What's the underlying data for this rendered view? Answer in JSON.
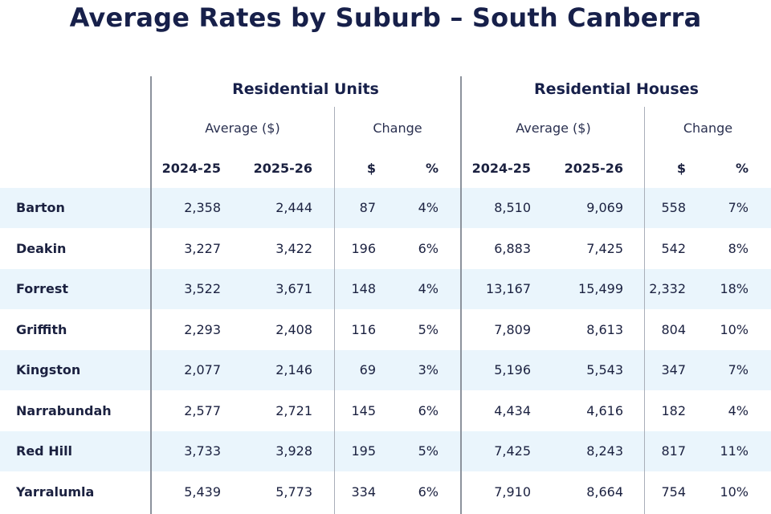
{
  "title": "Average Rates by Suburb – South Canberra",
  "groups": [
    "Residential Units",
    "Residential Houses"
  ],
  "subheaders": [
    "Average ($)",
    "Change",
    "Average ($)",
    "Change"
  ],
  "columns": [
    "2024-25",
    "2025-26",
    "$",
    "%",
    "2024-25",
    "2025-26",
    "$",
    "%"
  ],
  "rows": [
    {
      "suburb": "Barton",
      "cells": [
        "2,358",
        "2,444",
        "87",
        "4%",
        "8,510",
        "9,069",
        "558",
        "7%"
      ]
    },
    {
      "suburb": "Deakin",
      "cells": [
        "3,227",
        "3,422",
        "196",
        "6%",
        "6,883",
        "7,425",
        "542",
        "8%"
      ]
    },
    {
      "suburb": "Forrest",
      "cells": [
        "3,522",
        "3,671",
        "148",
        "4%",
        "13,167",
        "15,499",
        "2,332",
        "18%"
      ]
    },
    {
      "suburb": "Griffith",
      "cells": [
        "2,293",
        "2,408",
        "116",
        "5%",
        "7,809",
        "8,613",
        "804",
        "10%"
      ]
    },
    {
      "suburb": "Kingston",
      "cells": [
        "2,077",
        "2,146",
        "69",
        "3%",
        "5,196",
        "5,543",
        "347",
        "7%"
      ]
    },
    {
      "suburb": "Narrabundah",
      "cells": [
        "2,577",
        "2,721",
        "145",
        "6%",
        "4,434",
        "4,616",
        "182",
        "4%"
      ]
    },
    {
      "suburb": "Red Hill",
      "cells": [
        "3,733",
        "3,928",
        "195",
        "5%",
        "7,425",
        "8,243",
        "817",
        "11%"
      ]
    },
    {
      "suburb": "Yarralumla",
      "cells": [
        "5,439",
        "5,773",
        "334",
        "6%",
        "7,910",
        "8,664",
        "754",
        "10%"
      ]
    }
  ],
  "colors": {
    "band": "#eaf5fc",
    "title": "#17204a",
    "text": "#1b2140",
    "divider": "#a8aeb8"
  },
  "chart_data": {
    "type": "table",
    "title": "Average Rates by Suburb – South Canberra",
    "column_groups": [
      {
        "name": "Residential Units",
        "columns": [
          "Average ($) 2024-25",
          "Average ($) 2025-26",
          "Change $",
          "Change %"
        ]
      },
      {
        "name": "Residential Houses",
        "columns": [
          "Average ($) 2024-25",
          "Average ($) 2025-26",
          "Change $",
          "Change %"
        ]
      }
    ],
    "categories": [
      "Barton",
      "Deakin",
      "Forrest",
      "Griffith",
      "Kingston",
      "Narrabundah",
      "Red Hill",
      "Yarralumla"
    ],
    "series": [
      {
        "name": "Residential Units Average ($) 2024-25",
        "values": [
          2358,
          3227,
          3522,
          2293,
          2077,
          2577,
          3733,
          5439
        ]
      },
      {
        "name": "Residential Units Average ($) 2025-26",
        "values": [
          2444,
          3422,
          3671,
          2408,
          2146,
          2721,
          3928,
          5773
        ]
      },
      {
        "name": "Residential Units Change $",
        "values": [
          87,
          196,
          148,
          116,
          69,
          145,
          195,
          334
        ]
      },
      {
        "name": "Residential Units Change %",
        "values": [
          4,
          6,
          4,
          5,
          3,
          6,
          5,
          6
        ]
      },
      {
        "name": "Residential Houses Average ($) 2024-25",
        "values": [
          8510,
          6883,
          13167,
          7809,
          5196,
          4434,
          7425,
          7910
        ]
      },
      {
        "name": "Residential Houses Average ($) 2025-26",
        "values": [
          9069,
          7425,
          15499,
          8613,
          5543,
          4616,
          8243,
          8664
        ]
      },
      {
        "name": "Residential Houses Change $",
        "values": [
          558,
          542,
          2332,
          804,
          347,
          182,
          817,
          754
        ]
      },
      {
        "name": "Residential Houses Change %",
        "values": [
          7,
          8,
          18,
          10,
          7,
          4,
          11,
          10
        ]
      }
    ]
  }
}
